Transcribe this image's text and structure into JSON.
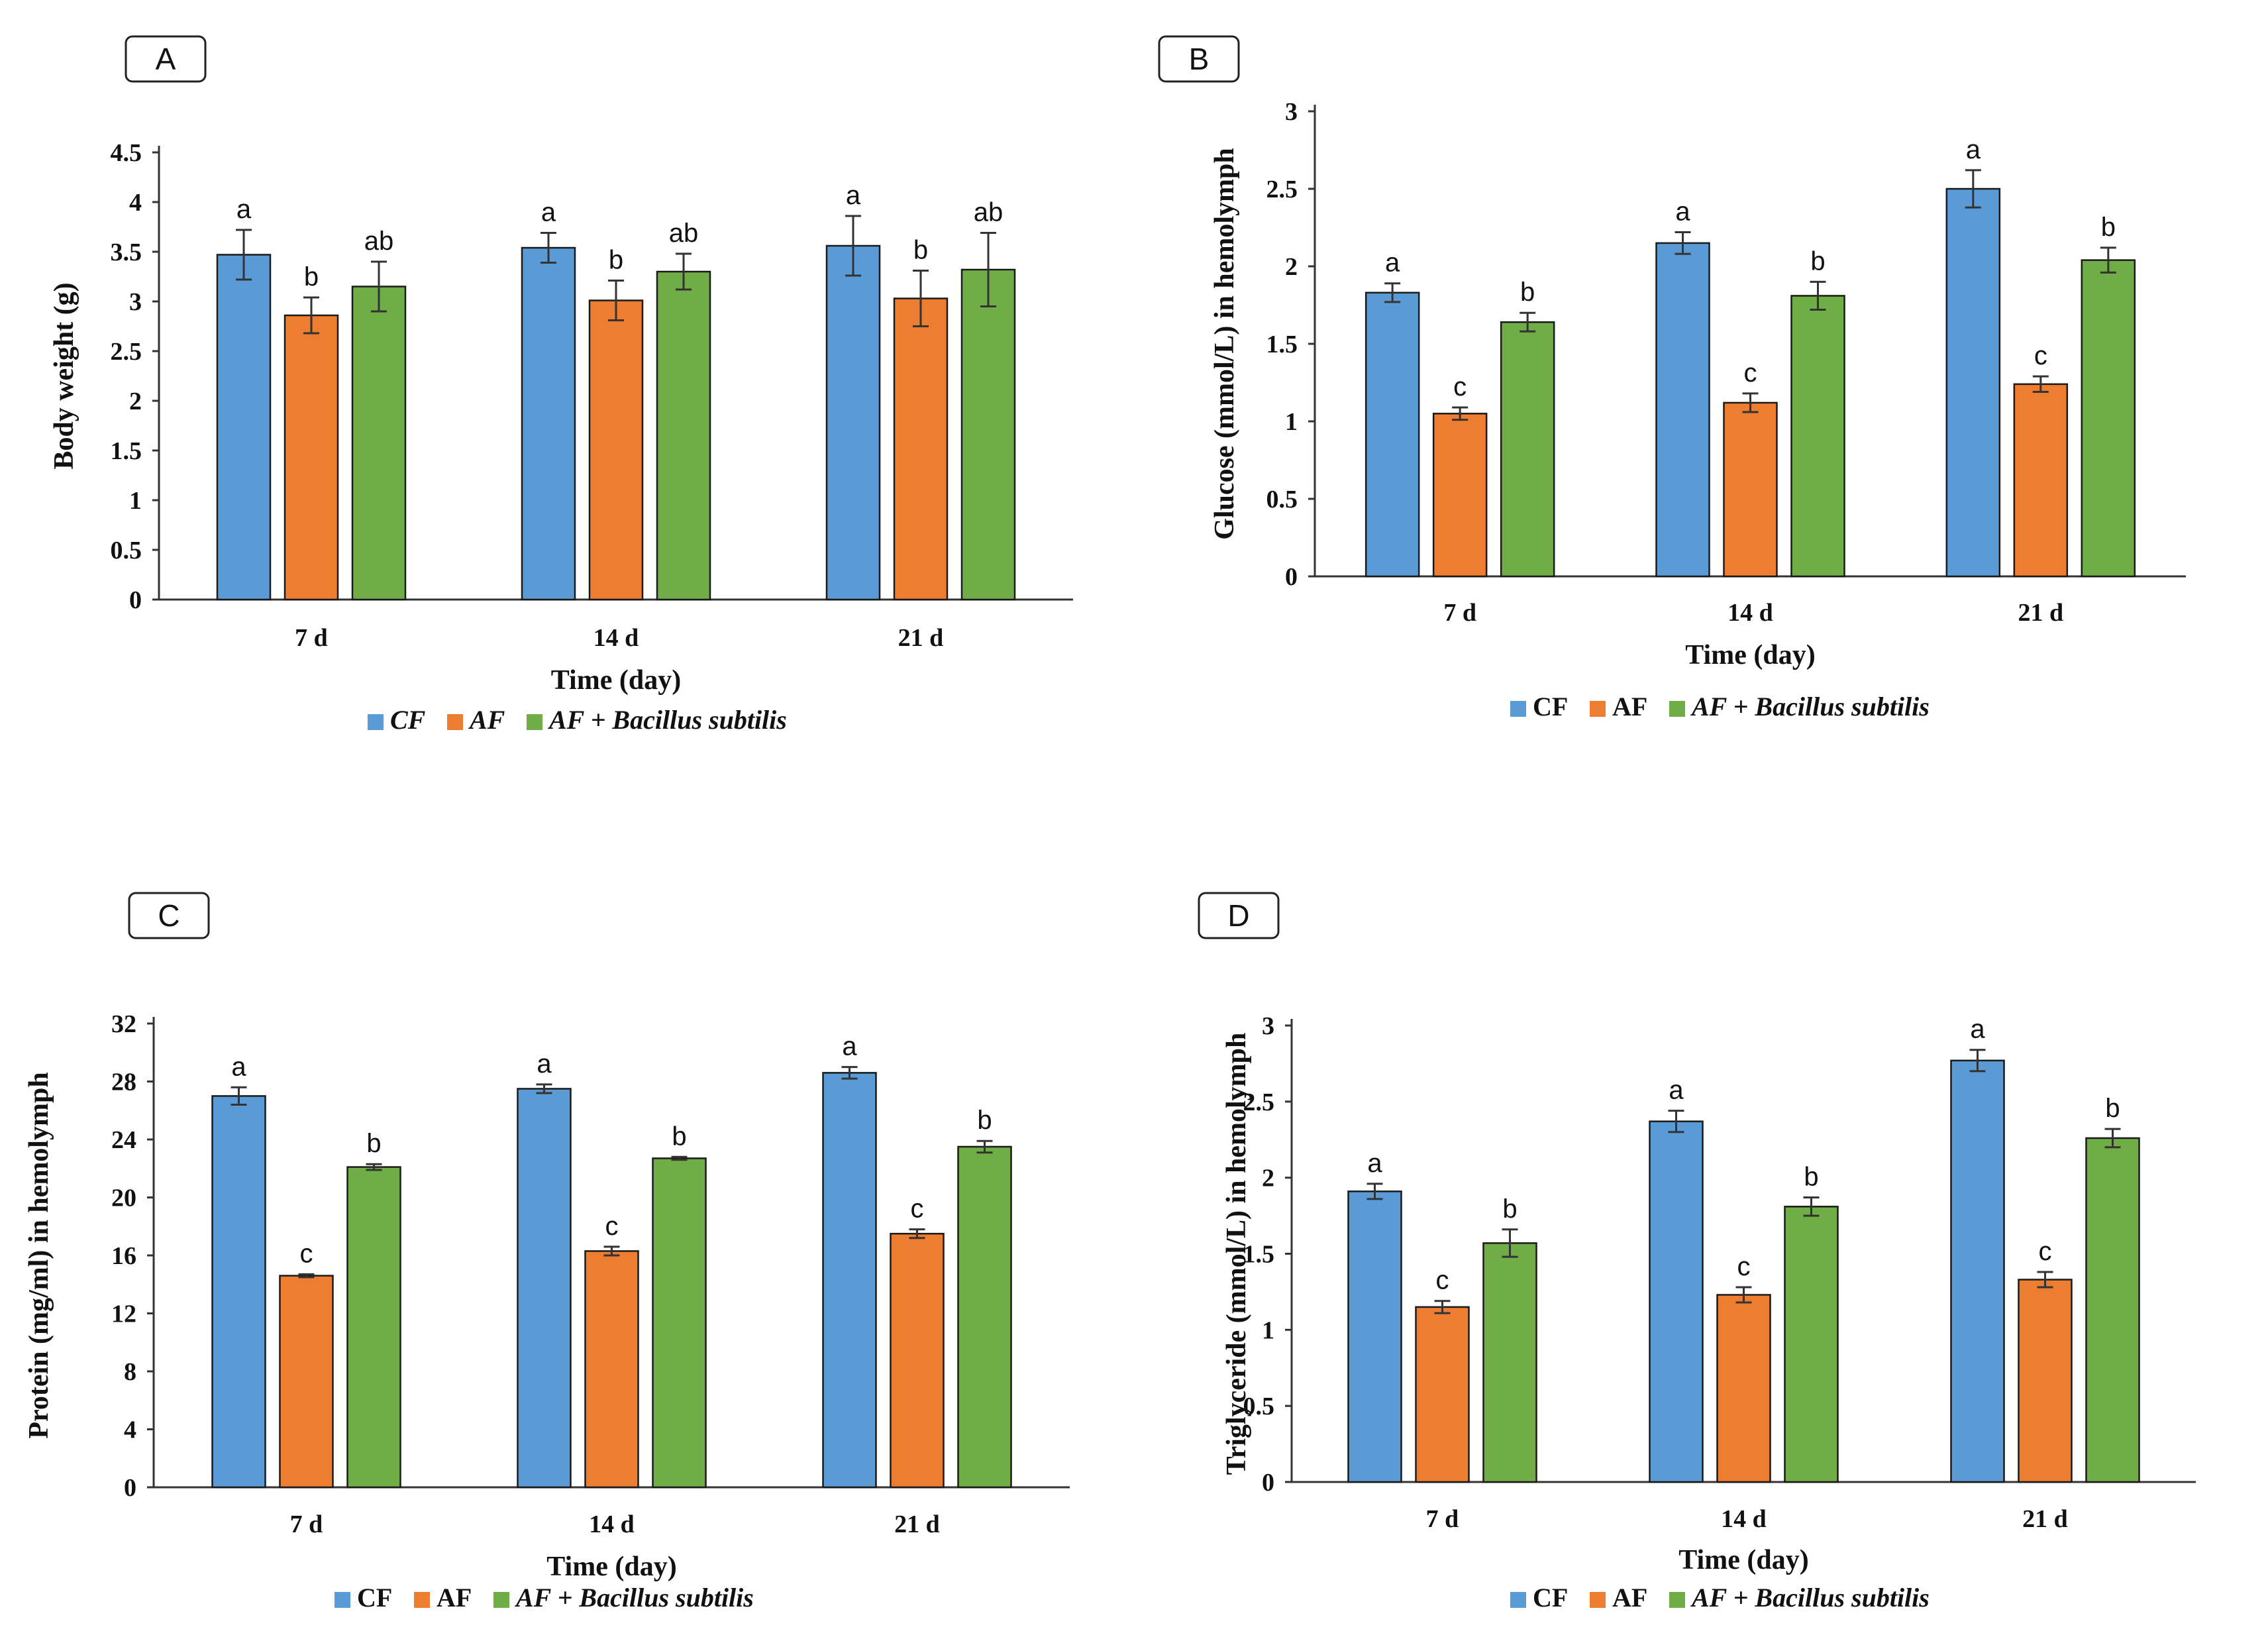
{
  "legend": {
    "cf_label": "CF",
    "af_label": "AF",
    "afbs_label": "AF + Bacillus subtilis"
  },
  "colors": {
    "CF": "#5B9BD5",
    "AF": "#ED7D31",
    "AF + Bacillus subtilis": "#70AD47"
  },
  "chart_data": [
    {
      "panel": "A",
      "type": "bar",
      "categories": [
        "7 d",
        "14 d",
        "21 d"
      ],
      "xlabel": "Time (day)",
      "ylabel": "Body weight (g)",
      "ylim": [
        0,
        4.5
      ],
      "yticks": [
        0,
        0.5,
        1,
        1.5,
        2,
        2.5,
        3,
        3.5,
        4,
        4.5
      ],
      "legend_italic_all": true,
      "series": [
        {
          "name": "CF",
          "values": [
            3.47,
            3.54,
            3.56
          ],
          "errors": [
            0.25,
            0.15,
            0.3
          ],
          "labels": [
            "a",
            "a",
            "a"
          ]
        },
        {
          "name": "AF",
          "values": [
            2.86,
            3.01,
            3.03
          ],
          "errors": [
            0.18,
            0.2,
            0.28
          ],
          "labels": [
            "b",
            "b",
            "b"
          ]
        },
        {
          "name": "AF + Bacillus subtilis",
          "values": [
            3.15,
            3.3,
            3.32
          ],
          "errors": [
            0.25,
            0.18,
            0.37
          ],
          "labels": [
            "ab",
            "ab",
            "ab"
          ]
        }
      ]
    },
    {
      "panel": "B",
      "type": "bar",
      "categories": [
        "7 d",
        "14 d",
        "21 d"
      ],
      "xlabel": "Time (day)",
      "ylabel": "Glucose (mmol/L) in hemolymph",
      "ylim": [
        0,
        3
      ],
      "yticks": [
        0,
        0.5,
        1,
        1.5,
        2,
        2.5,
        3
      ],
      "legend_italic_all": false,
      "series": [
        {
          "name": "CF",
          "values": [
            1.83,
            2.15,
            2.5
          ],
          "errors": [
            0.06,
            0.07,
            0.12
          ],
          "labels": [
            "a",
            "a",
            "a"
          ]
        },
        {
          "name": "AF",
          "values": [
            1.05,
            1.12,
            1.24
          ],
          "errors": [
            0.04,
            0.06,
            0.05
          ],
          "labels": [
            "c",
            "c",
            "c"
          ]
        },
        {
          "name": "AF + Bacillus subtilis",
          "values": [
            1.64,
            1.81,
            2.04
          ],
          "errors": [
            0.06,
            0.09,
            0.08
          ],
          "labels": [
            "b",
            "b",
            "b"
          ]
        }
      ]
    },
    {
      "panel": "C",
      "type": "bar",
      "categories": [
        "7 d",
        "14 d",
        "21 d"
      ],
      "xlabel": "Time (day)",
      "ylabel": "Protein (mg/ml) in hemolymph",
      "ylim": [
        0,
        32
      ],
      "yticks": [
        0,
        4,
        8,
        12,
        16,
        20,
        24,
        28,
        32
      ],
      "legend_italic_all": false,
      "series": [
        {
          "name": "CF",
          "values": [
            27.0,
            27.5,
            28.6
          ],
          "errors": [
            0.6,
            0.3,
            0.4
          ],
          "labels": [
            "a",
            "a",
            "a"
          ]
        },
        {
          "name": "AF",
          "values": [
            14.6,
            16.3,
            17.5
          ],
          "errors": [
            0.1,
            0.3,
            0.3
          ],
          "labels": [
            "c",
            "c",
            "c"
          ]
        },
        {
          "name": "AF + Bacillus subtilis",
          "values": [
            22.1,
            22.7,
            23.5
          ],
          "errors": [
            0.2,
            0.1,
            0.4
          ],
          "labels": [
            "b",
            "b",
            "b"
          ]
        }
      ]
    },
    {
      "panel": "D",
      "type": "bar",
      "categories": [
        "7 d",
        "14 d",
        "21 d"
      ],
      "xlabel": "Time (day)",
      "ylabel": "Triglyceride (mmol/L) in hemolymph",
      "ylim": [
        0,
        3
      ],
      "yticks": [
        0,
        0.5,
        1,
        1.5,
        2,
        2.5,
        3
      ],
      "legend_italic_all": false,
      "series": [
        {
          "name": "CF",
          "values": [
            1.91,
            2.37,
            2.77
          ],
          "errors": [
            0.05,
            0.07,
            0.07
          ],
          "labels": [
            "a",
            "a",
            "a"
          ]
        },
        {
          "name": "AF",
          "values": [
            1.15,
            1.23,
            1.33
          ],
          "errors": [
            0.04,
            0.05,
            0.05
          ],
          "labels": [
            "c",
            "c",
            "c"
          ]
        },
        {
          "name": "AF + Bacillus subtilis",
          "values": [
            1.57,
            1.81,
            2.26
          ],
          "errors": [
            0.09,
            0.06,
            0.06
          ],
          "labels": [
            "b",
            "b",
            "b"
          ]
        }
      ]
    }
  ]
}
